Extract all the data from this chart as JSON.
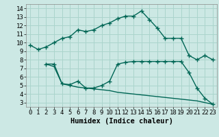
{
  "xlabel": "Humidex (Indice chaleur)",
  "ylabel": "",
  "bg_color": "#cce8e4",
  "grid_color": "#aad4cc",
  "line_color": "#006655",
  "xlim": [
    -0.5,
    23.5
  ],
  "ylim": [
    2.5,
    14.5
  ],
  "xticks": [
    0,
    1,
    2,
    3,
    4,
    5,
    6,
    7,
    8,
    9,
    10,
    11,
    12,
    13,
    14,
    15,
    16,
    17,
    18,
    19,
    20,
    21,
    22,
    23
  ],
  "yticks": [
    3,
    4,
    5,
    6,
    7,
    8,
    9,
    10,
    11,
    12,
    13,
    14
  ],
  "line1_x": [
    0,
    1,
    2,
    3,
    4,
    5,
    6,
    7,
    8,
    9,
    10,
    11,
    12,
    13,
    14,
    15,
    16,
    17,
    18,
    19,
    20,
    21,
    22,
    23
  ],
  "line1_y": [
    9.7,
    9.2,
    9.5,
    10.0,
    10.5,
    10.7,
    11.5,
    11.3,
    11.5,
    12.0,
    12.3,
    12.8,
    13.1,
    13.1,
    13.7,
    12.7,
    11.7,
    10.5,
    10.5,
    10.5,
    8.5,
    8.0,
    8.5,
    8.0
  ],
  "line2_x": [
    2,
    3,
    4,
    5,
    6,
    7,
    8,
    9,
    10,
    11,
    12,
    13,
    14,
    15,
    16,
    17,
    18,
    19,
    20,
    21,
    22,
    23
  ],
  "line2_y": [
    7.5,
    7.5,
    5.2,
    5.1,
    5.5,
    4.7,
    4.7,
    5.0,
    5.5,
    7.5,
    7.7,
    7.8,
    7.8,
    7.8,
    7.8,
    7.8,
    7.8,
    7.8,
    6.5,
    4.7,
    3.5,
    2.8
  ],
  "line3_x": [
    2,
    3,
    4,
    5,
    6,
    7,
    8,
    9,
    10,
    11,
    12,
    13,
    14,
    15,
    16,
    17,
    18,
    19,
    20,
    21,
    22,
    23
  ],
  "line3_y": [
    7.5,
    7.2,
    5.2,
    5.0,
    4.8,
    4.7,
    4.6,
    4.5,
    4.4,
    4.2,
    4.1,
    4.0,
    3.9,
    3.8,
    3.7,
    3.6,
    3.5,
    3.4,
    3.3,
    3.2,
    3.0,
    2.8
  ],
  "marker": "+",
  "markersize": 4,
  "linewidth": 1.0,
  "tick_fontsize": 6.5,
  "xlabel_fontsize": 7.5
}
